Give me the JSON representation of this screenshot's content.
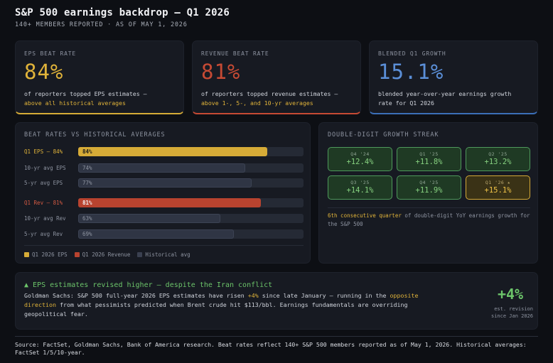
{
  "header": {
    "title": "S&P 500 earnings backdrop — Q1 2026",
    "subtitle": "140+ MEMBERS REPORTED · AS OF MAY 1, 2026"
  },
  "kpis": [
    {
      "label": "EPS BEAT RATE",
      "value": "84%",
      "color": "#e0b33a",
      "desc_pre": "of reporters topped EPS estimates —",
      "desc_hl": "above all historical averages"
    },
    {
      "label": "REVENUE BEAT RATE",
      "value": "81%",
      "color": "#c64a34",
      "desc_pre": "of reporters topped revenue estimates —",
      "desc_hl": "above 1-, 5-, and 10-yr averages"
    },
    {
      "label": "BLENDED Q1 GROWTH",
      "value": "15.1%",
      "color": "#5b8fd8",
      "desc_pre": "blended year-over-year earnings growth rate for Q1 2026",
      "desc_hl": ""
    }
  ],
  "beats": {
    "title": "BEAT RATES VS HISTORICAL AVERAGES",
    "rows": [
      {
        "label": "Q1 EPS — 84%",
        "value": 84,
        "text": "84%",
        "color": "#d6ab37",
        "label_color": "#e0b33a",
        "val_color": "#1a1a1a"
      },
      {
        "label": "10-yr avg EPS",
        "value": 74,
        "text": "74%",
        "color": "#2f3544",
        "label_color": "#8d93a0",
        "val_color": "#8d93a0"
      },
      {
        "label": "5-yr avg EPS",
        "value": 77,
        "text": "77%",
        "color": "#2f3544",
        "label_color": "#8d93a0",
        "val_color": "#8d93a0"
      },
      {
        "label": "Q1 Rev — 81%",
        "value": 81,
        "text": "81%",
        "color": "#b8432f",
        "label_color": "#d35a43",
        "val_color": "#f2f3f6"
      },
      {
        "label": "10-yr avg Rev",
        "value": 63,
        "text": "63%",
        "color": "#2f3544",
        "label_color": "#8d93a0",
        "val_color": "#8d93a0"
      },
      {
        "label": "5-yr avg Rev",
        "value": 69,
        "text": "69%",
        "color": "#2f3544",
        "label_color": "#8d93a0",
        "val_color": "#8d93a0"
      }
    ],
    "legend": [
      {
        "label": "Q1 2026 EPS",
        "color": "#d6ab37"
      },
      {
        "label": "Q1 2026 Revenue",
        "color": "#b8432f"
      },
      {
        "label": "Historical avg",
        "color": "#3a4050"
      }
    ]
  },
  "streak": {
    "title": "DOUBLE-DIGIT GROWTH STREAK",
    "tiles": [
      {
        "q": "Q4 '24",
        "v": "+12.4%",
        "style": "g"
      },
      {
        "q": "Q1 '25",
        "v": "+11.8%",
        "style": "g"
      },
      {
        "q": "Q2 '25",
        "v": "+13.2%",
        "style": "g"
      },
      {
        "q": "Q3 '25",
        "v": "+14.1%",
        "style": "g"
      },
      {
        "q": "Q4 '25",
        "v": "+11.9%",
        "style": "g"
      },
      {
        "q": "Q1 '26 ★",
        "v": "+15.1%",
        "style": "y"
      }
    ],
    "note_hl": "6th consecutive quarter",
    "note_rest": "of double-digit YoY earnings growth for the S&P 500"
  },
  "revision": {
    "title": "▲ EPS estimates revised higher — despite the Iran conflict",
    "body_1": "Goldman Sachs: S&P 500 full-year 2026 EPS estimates have risen ",
    "body_hl1": "+4%",
    "body_2": " since late January — running in the ",
    "body_hl2": "opposite direction",
    "body_3": " from what pessimists predicted when Brent crude hit $113/bbl. Earnings fundamentals are overriding geopolitical fear.",
    "big": "+4%",
    "small_1": "est. revision",
    "small_2": "since Jan 2026"
  },
  "footer": "Source: FactSet, Goldman Sachs, Bank of America research. Beat rates reflect 140+ S&P 500 members reported as of May 1, 2026. Historical averages: FactSet 1/5/10-year."
}
